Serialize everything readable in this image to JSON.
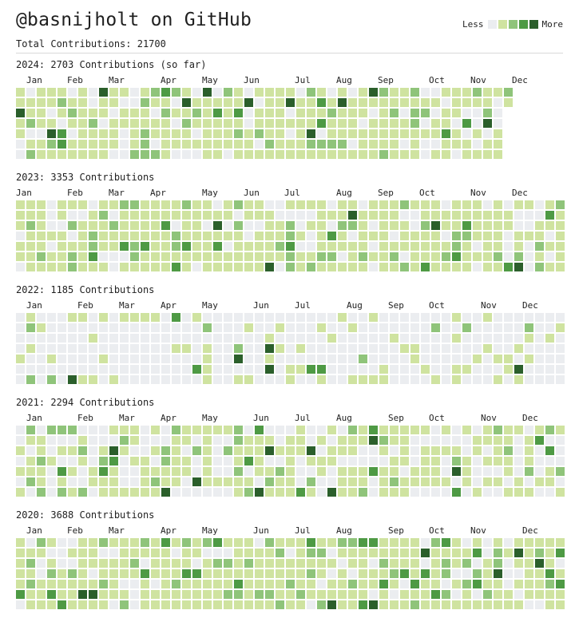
{
  "header": {
    "title": "@basnijholt on GitHub",
    "total": "Total Contributions: 21700"
  },
  "legend": {
    "less": "Less",
    "more": "More",
    "levels": [
      0,
      1,
      2,
      3,
      4
    ]
  },
  "colors": [
    "#ebedf0",
    "#cfe3a0",
    "#8fc47a",
    "#4e9a44",
    "#2b5f2b"
  ],
  "years": [
    {
      "label": "2024: 2703 Contributions (so far)",
      "months": [
        "Jan",
        "Feb",
        "Mar",
        "Apr",
        "May",
        "Jun",
        "Jul",
        "Aug",
        "Sep",
        "Oct",
        "Nov",
        "Dec"
      ],
      "weeks": 48,
      "last_week_days": 2
    },
    {
      "label": "2023: 3353 Contributions",
      "months": [
        "Jan",
        "Feb",
        "Mar",
        "Apr",
        "May",
        "Jun",
        "Jul",
        "Aug",
        "Sep",
        "Oct",
        "Nov",
        "Dec"
      ],
      "weeks": 53,
      "last_week_days": 7
    },
    {
      "label": "2022: 1185 Contributions",
      "months": [
        "Jan",
        "Feb",
        "Mar",
        "Apr",
        "May",
        "Jun",
        "Jul",
        "Aug",
        "Sep",
        "Oct",
        "Nov",
        "Dec"
      ],
      "weeks": 53,
      "last_week_days": 7
    },
    {
      "label": "2021: 2294 Contributions",
      "months": [
        "Jan",
        "Feb",
        "Mar",
        "Apr",
        "May",
        "Jun",
        "Jul",
        "Aug",
        "Sep",
        "Oct",
        "Nov",
        "Dec"
      ],
      "weeks": 53,
      "last_week_days": 7
    },
    {
      "label": "2020: 3688 Contributions",
      "months": [
        "Jan",
        "Feb",
        "Mar",
        "Apr",
        "May",
        "Jun",
        "Jul",
        "Aug",
        "Sep",
        "Oct",
        "Nov",
        "Dec"
      ],
      "weeks": 53,
      "last_week_days": 7
    }
  ]
}
